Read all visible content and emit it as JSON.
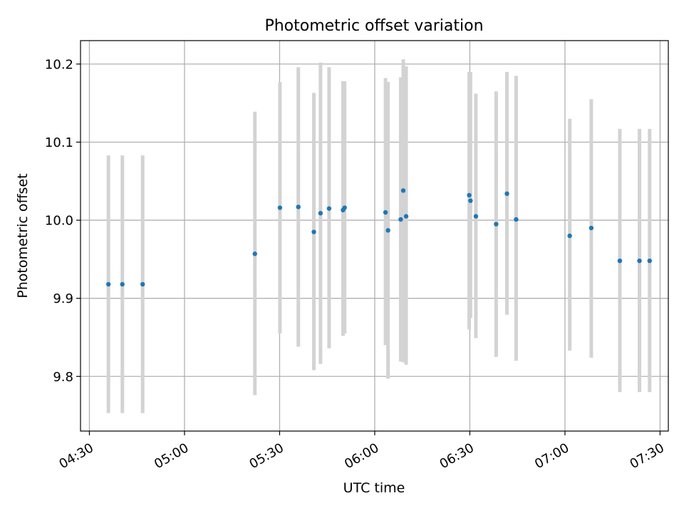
{
  "chart_data": {
    "type": "scatter",
    "title": "Photometric offset variation",
    "xlabel": "UTC time",
    "ylabel": "Photometric offset",
    "x_ticks": [
      "04:30",
      "05:00",
      "05:30",
      "06:00",
      "06:30",
      "07:00",
      "07:30"
    ],
    "x_tick_minutes": [
      270,
      300,
      330,
      360,
      390,
      420,
      450
    ],
    "y_ticks": [
      "9.8",
      "9.9",
      "10.0",
      "10.1",
      "10.2"
    ],
    "y_tick_values": [
      9.8,
      9.9,
      10.0,
      10.1,
      10.2
    ],
    "xlim_minutes": [
      267.2,
      452.6
    ],
    "ylim": [
      9.73,
      10.23
    ],
    "grid": true,
    "x_unit": "minutes since 00:00 UTC",
    "colors": {
      "points": "#1f77b4",
      "errorbars": "#d3d3d3",
      "grid": "#b0b0b0"
    },
    "points": [
      {
        "x": 276.0,
        "y": 9.918,
        "ylo": 9.753,
        "yhi": 10.083
      },
      {
        "x": 280.4,
        "y": 9.918,
        "ylo": 9.753,
        "yhi": 10.083
      },
      {
        "x": 286.8,
        "y": 9.918,
        "ylo": 9.753,
        "yhi": 10.083
      },
      {
        "x": 322.2,
        "y": 9.957,
        "ylo": 9.776,
        "yhi": 10.139
      },
      {
        "x": 330.1,
        "y": 10.016,
        "ylo": 9.855,
        "yhi": 10.177
      },
      {
        "x": 335.9,
        "y": 10.017,
        "ylo": 9.838,
        "yhi": 10.196
      },
      {
        "x": 340.8,
        "y": 9.985,
        "ylo": 9.808,
        "yhi": 10.163
      },
      {
        "x": 342.9,
        "y": 10.009,
        "ylo": 9.816,
        "yhi": 10.202
      },
      {
        "x": 345.6,
        "y": 10.015,
        "ylo": 9.836,
        "yhi": 10.196
      },
      {
        "x": 350.0,
        "y": 10.013,
        "ylo": 9.852,
        "yhi": 10.178
      },
      {
        "x": 350.5,
        "y": 10.016,
        "ylo": 9.855,
        "yhi": 10.178
      },
      {
        "x": 363.4,
        "y": 10.01,
        "ylo": 9.84,
        "yhi": 10.182
      },
      {
        "x": 364.2,
        "y": 9.987,
        "ylo": 9.797,
        "yhi": 10.177
      },
      {
        "x": 368.2,
        "y": 10.001,
        "ylo": 9.819,
        "yhi": 10.183
      },
      {
        "x": 369.0,
        "y": 10.038,
        "ylo": 9.818,
        "yhi": 10.206
      },
      {
        "x": 369.9,
        "y": 10.005,
        "ylo": 9.815,
        "yhi": 10.197
      },
      {
        "x": 389.8,
        "y": 10.032,
        "ylo": 9.86,
        "yhi": 10.19
      },
      {
        "x": 390.2,
        "y": 10.025,
        "ylo": 9.875,
        "yhi": 10.19
      },
      {
        "x": 391.9,
        "y": 10.005,
        "ylo": 9.849,
        "yhi": 10.162
      },
      {
        "x": 398.3,
        "y": 9.995,
        "ylo": 9.825,
        "yhi": 10.165
      },
      {
        "x": 401.7,
        "y": 10.034,
        "ylo": 9.879,
        "yhi": 10.19
      },
      {
        "x": 404.6,
        "y": 10.001,
        "ylo": 9.82,
        "yhi": 10.185
      },
      {
        "x": 421.5,
        "y": 9.98,
        "ylo": 9.833,
        "yhi": 10.13
      },
      {
        "x": 428.3,
        "y": 9.99,
        "ylo": 9.824,
        "yhi": 10.155
      },
      {
        "x": 437.3,
        "y": 9.948,
        "ylo": 9.78,
        "yhi": 10.117
      },
      {
        "x": 443.5,
        "y": 9.948,
        "ylo": 9.78,
        "yhi": 10.117
      },
      {
        "x": 446.7,
        "y": 9.948,
        "ylo": 9.78,
        "yhi": 10.117
      }
    ]
  }
}
